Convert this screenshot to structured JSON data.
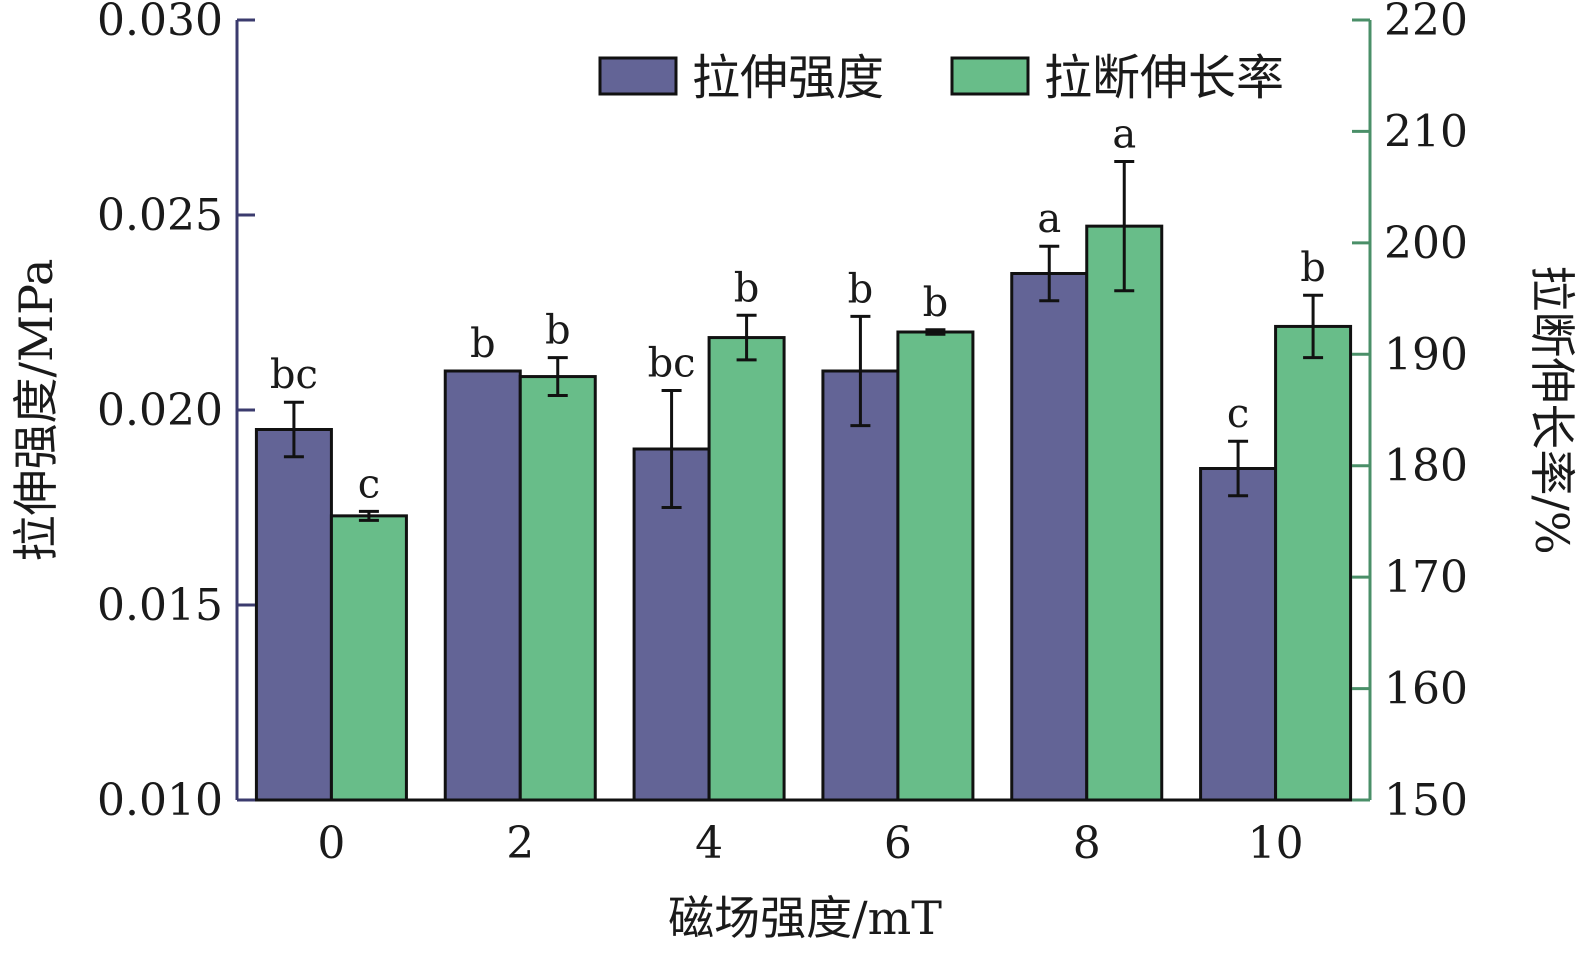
{
  "chart_data": {
    "type": "bar",
    "xlabel": "磁场强度/mT",
    "categories": [
      "0",
      "2",
      "4",
      "6",
      "8",
      "10"
    ],
    "y_left": {
      "label": "拉伸强度/MPa",
      "range": [
        0.01,
        0.03
      ],
      "ticks": [
        0.01,
        0.015,
        0.02,
        0.025,
        0.03
      ],
      "tick_labels": [
        "0.010",
        "0.015",
        "0.020",
        "0.025",
        "0.030"
      ],
      "color": "#3b3b6e"
    },
    "y_right": {
      "label": "拉断伸长率/%",
      "range": [
        150,
        220
      ],
      "ticks": [
        150,
        160,
        170,
        180,
        190,
        200,
        210,
        220
      ],
      "tick_labels": [
        "150",
        "160",
        "170",
        "180",
        "190",
        "200",
        "210",
        "220"
      ],
      "color": "#4a8f68"
    },
    "series": [
      {
        "name": "拉伸强度",
        "axis": "left",
        "color": "#636496",
        "values": [
          0.0195,
          0.021,
          0.019,
          0.021,
          0.0235,
          0.0185
        ],
        "errors": [
          0.0007,
          0.0,
          0.0015,
          0.0014,
          0.0007,
          0.0007
        ],
        "significance": [
          "bc",
          "b",
          "bc",
          "b",
          "a",
          "c"
        ]
      },
      {
        "name": "拉断伸长率",
        "axis": "right",
        "color": "#68bd89",
        "values": [
          175.5,
          188.0,
          191.5,
          192.0,
          201.5,
          192.5
        ],
        "errors": [
          0.4,
          1.7,
          2.0,
          0.2,
          5.8,
          2.8
        ],
        "significance": [
          "c",
          "b",
          "b",
          "b",
          "a",
          "b"
        ]
      }
    ],
    "legend": {
      "position": "top-right",
      "entries": [
        "拉伸强度",
        "拉断伸长率"
      ]
    },
    "grid": false
  }
}
